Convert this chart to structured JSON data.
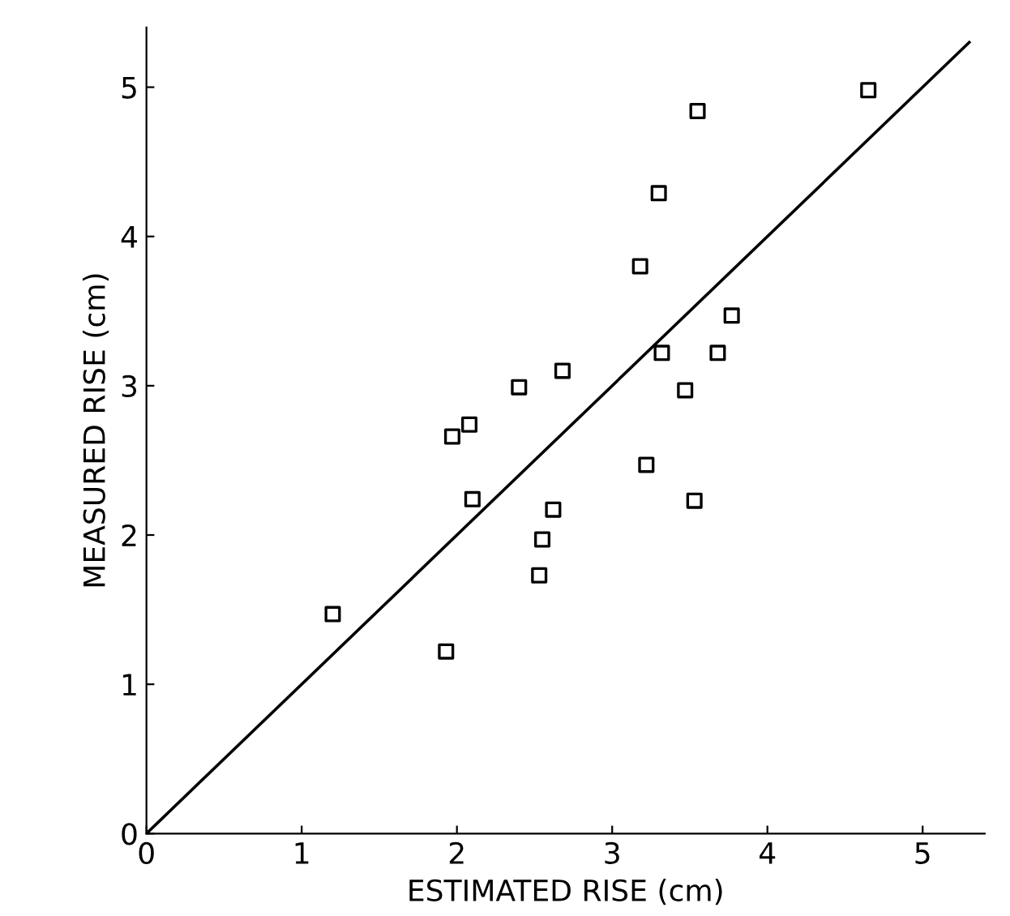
{
  "chart_data": {
    "type": "scatter",
    "xlabel": "ESTIMATED RISE (cm)",
    "ylabel": "MEASURED RISE (cm)",
    "xlim": [
      0,
      5.4
    ],
    "ylim": [
      0,
      5.4
    ],
    "xticks": [
      0,
      1,
      2,
      3,
      4,
      5
    ],
    "yticks": [
      0,
      1,
      2,
      3,
      4,
      5
    ],
    "grid": false,
    "legend": false,
    "series": [
      {
        "color": "#000000",
        "marker": "square",
        "x": [
          1.2,
          1.93,
          1.97,
          2.08,
          2.1,
          2.4,
          2.53,
          2.55,
          2.62,
          2.68,
          3.18,
          3.22,
          3.3,
          3.32,
          3.47,
          3.53,
          3.55,
          3.68,
          3.77,
          4.65
        ],
        "values": [
          1.47,
          1.22,
          2.66,
          2.74,
          2.24,
          2.99,
          1.73,
          1.97,
          2.17,
          3.1,
          3.8,
          2.47,
          4.29,
          3.22,
          2.97,
          2.23,
          4.84,
          3.22,
          3.47,
          4.98
        ]
      },
      {
        "type": "line",
        "color": "#000000",
        "marker": "none",
        "line_style": "solid",
        "x": [
          0,
          5.3
        ],
        "values": [
          0,
          5.3
        ]
      }
    ]
  }
}
